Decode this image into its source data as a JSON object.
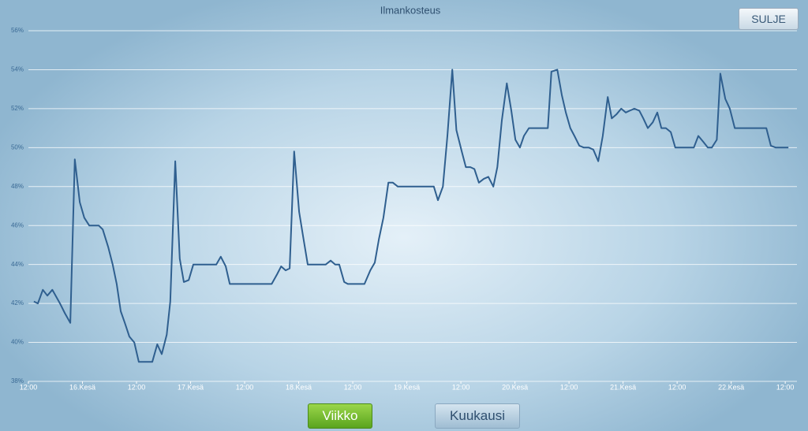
{
  "chart_data": {
    "type": "line",
    "title": "Ilmankosteus",
    "x": [
      1.2,
      2.1,
      3.2,
      4.2,
      5.3,
      7.0,
      8.1,
      9.3,
      10.3,
      11.4,
      12.4,
      13.5,
      15.6,
      16.5,
      17.7,
      18.7,
      19.6,
      20.5,
      21.4,
      22.4,
      23.5,
      24.5,
      27.5,
      28.6,
      29.6,
      30.7,
      31.5,
      32.6,
      33.6,
      34.5,
      35.6,
      36.6,
      41.7,
      42.7,
      43.8,
      44.7,
      54.0,
      55.2,
      56.1,
      57.1,
      58.0,
      59.0,
      60.1,
      61.0,
      62.0,
      66.0,
      67.1,
      68.1,
      69.0,
      70.1,
      70.9,
      74.6,
      75.9,
      76.9,
      77.8,
      78.8,
      79.9,
      80.9,
      82.0,
      90.0,
      90.9,
      92.0,
      93.0,
      94.1,
      95.0,
      96.2,
      97.1,
      98.1,
      99.0,
      100.0,
      101.1,
      102.1,
      103.2,
      104.1,
      105.1,
      106.2,
      107.2,
      108.1,
      109.1,
      110.0,
      111.1,
      115.3,
      116.1,
      117.4,
      118.4,
      119.3,
      120.3,
      121.2,
      122.3,
      123.3,
      124.4,
      125.4,
      126.5,
      127.5,
      128.6,
      129.5,
      130.5,
      131.6,
      132.6,
      133.5,
      134.5,
      135.6,
      136.5,
      137.5,
      138.6,
      139.6,
      140.5,
      141.5,
      142.6,
      143.6,
      147.7,
      148.7,
      149.8,
      150.8,
      151.7,
      152.8,
      153.6,
      154.7,
      155.7,
      156.8,
      163.8,
      164.8,
      165.9,
      168.7
    ],
    "series": [
      {
        "color": "#2f5f8f",
        "values": [
          42.1,
          42.0,
          42.7,
          42.4,
          42.7,
          42.0,
          41.5,
          41.0,
          49.4,
          47.2,
          46.4,
          46.0,
          46.0,
          45.8,
          44.9,
          44.0,
          43.0,
          41.6,
          41.0,
          40.3,
          40.0,
          39.0,
          39.0,
          39.9,
          39.4,
          40.4,
          42.1,
          49.3,
          44.3,
          43.1,
          43.2,
          44.0,
          44.0,
          44.4,
          43.9,
          43.0,
          43.0,
          43.5,
          43.9,
          43.7,
          43.8,
          49.8,
          46.7,
          45.4,
          44.0,
          44.0,
          44.2,
          44.0,
          44.0,
          43.1,
          43.0,
          43.0,
          43.7,
          44.1,
          45.3,
          46.4,
          48.2,
          48.2,
          48.0,
          48.0,
          47.3,
          48.0,
          50.6,
          54.0,
          50.9,
          49.8,
          49.0,
          49.0,
          48.9,
          48.2,
          48.4,
          48.5,
          48.0,
          49.0,
          51.4,
          53.3,
          51.9,
          50.4,
          50.0,
          50.6,
          51.0,
          51.0,
          53.9,
          54.0,
          52.7,
          51.8,
          51.0,
          50.6,
          50.1,
          50.0,
          50.0,
          49.9,
          49.3,
          50.6,
          52.6,
          51.5,
          51.7,
          52.0,
          51.8,
          51.9,
          52.0,
          51.9,
          51.5,
          51.0,
          51.3,
          51.8,
          51.0,
          51.0,
          50.8,
          50.0,
          50.0,
          50.6,
          50.3,
          50.0,
          50.0,
          50.4,
          53.8,
          52.5,
          52.0,
          51.0,
          51.0,
          50.1,
          50.0,
          50.0
        ]
      }
    ],
    "xlim": [
      0,
      170.6
    ],
    "xticks": [
      {
        "value": 0,
        "label": "12:00"
      },
      {
        "value": 12,
        "label": "16.Kesä"
      },
      {
        "value": 24,
        "label": "12:00"
      },
      {
        "value": 36,
        "label": "17.Kesä"
      },
      {
        "value": 48,
        "label": "12:00"
      },
      {
        "value": 60,
        "label": "18.Kesä"
      },
      {
        "value": 72,
        "label": "12:00"
      },
      {
        "value": 84,
        "label": "19.Kesä"
      },
      {
        "value": 96,
        "label": "12:00"
      },
      {
        "value": 108,
        "label": "20.Kesä"
      },
      {
        "value": 120,
        "label": "12:00"
      },
      {
        "value": 132,
        "label": "21.Kesä"
      },
      {
        "value": 144,
        "label": "12:00"
      },
      {
        "value": 156,
        "label": "22.Kesä"
      },
      {
        "value": 168,
        "label": "12:00"
      }
    ],
    "ylim": [
      38,
      56
    ],
    "yticks": [
      {
        "value": 38,
        "label": "38%"
      },
      {
        "value": 40,
        "label": "40%"
      },
      {
        "value": 42,
        "label": "42%"
      },
      {
        "value": 44,
        "label": "44%"
      },
      {
        "value": 46,
        "label": "46%"
      },
      {
        "value": 48,
        "label": "48%"
      },
      {
        "value": 50,
        "label": "50%"
      },
      {
        "value": 52,
        "label": "52%"
      },
      {
        "value": 54,
        "label": "54%"
      },
      {
        "value": 56,
        "label": "56%"
      }
    ],
    "grid": true
  },
  "buttons": {
    "close": "SULJE",
    "week": "Viikko",
    "month": "Kuukausi"
  }
}
